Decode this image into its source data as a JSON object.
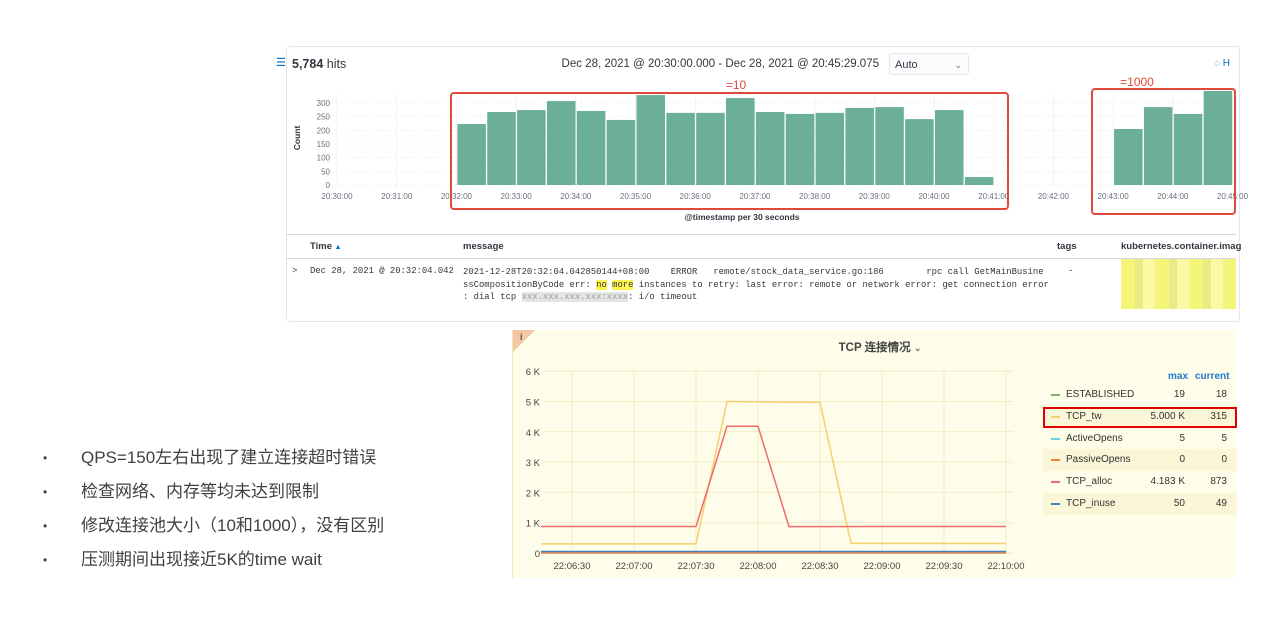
{
  "kibana": {
    "hits_count": "5,784",
    "hits_label": "hits",
    "time_range": "Dec 28, 2021 @ 20:30:00.000 - Dec 28, 2021 @ 20:45:29.075",
    "interval_select": "Auto",
    "hide_chart_label": "H",
    "annotations": {
      "box1": "=10",
      "box2": "=1000"
    },
    "table": {
      "columns": [
        "Time",
        "message",
        "tags",
        "kubernetes.container.imag"
      ],
      "rows": [
        {
          "time": "Dec 28, 2021 @ 20:32:04.042",
          "message_line1": "2021-12-28T20:32:04.042850144+08:00    ERROR   remote/stock_data_service.go:186        rpc call GetMainBusine",
          "message_line2_pre": "ssCompositionByCode err: ",
          "highlight1": "no",
          "highlight2": "more",
          "message_line2_post": " instances to retry: last error: remote or network error: get connection error",
          "message_line3_pre": ": dial tcp ",
          "message_line3_redacted": "xxx.xxx.xxx.xxx:xxxx",
          "message_line3_post": ": i/o timeout",
          "tags": "-"
        }
      ]
    }
  },
  "chart_data": [
    {
      "type": "bar",
      "xlabel": "@timestamp per 30 seconds",
      "ylabel": "Count",
      "ylim": [
        0,
        340
      ],
      "yticks": [
        0,
        50,
        100,
        150,
        200,
        250,
        300
      ],
      "xticks": [
        "20:30:00",
        "20:31:00",
        "20:32:00",
        "20:33:00",
        "20:34:00",
        "20:35:00",
        "20:36:00",
        "20:37:00",
        "20:38:00",
        "20:39:00",
        "20:40:00",
        "20:41:00",
        "20:42:00",
        "20:43:00",
        "20:44:00",
        "20:45:00"
      ],
      "x": [
        "20:32:00",
        "20:32:30",
        "20:33:00",
        "20:33:30",
        "20:34:00",
        "20:34:30",
        "20:35:00",
        "20:35:30",
        "20:36:00",
        "20:36:30",
        "20:37:00",
        "20:37:30",
        "20:38:00",
        "20:38:30",
        "20:39:00",
        "20:39:30",
        "20:40:00",
        "20:40:30",
        "20:43:00",
        "20:43:30",
        "20:44:00",
        "20:44:30"
      ],
      "values": [
        223,
        267,
        274,
        307,
        271,
        238,
        329,
        264,
        264,
        318,
        267,
        260,
        264,
        282,
        285,
        241,
        274,
        29,
        205,
        285,
        260,
        344
      ],
      "color": "#6aaf96",
      "grid": true
    },
    {
      "type": "line",
      "title": "TCP 连接情况",
      "yticks": [
        "0",
        "1 K",
        "2 K",
        "3 K",
        "4 K",
        "5 K",
        "6 K"
      ],
      "ylim": [
        0,
        6000
      ],
      "xticks": [
        "22:06:30",
        "22:07:00",
        "22:07:30",
        "22:08:00",
        "22:08:30",
        "22:09:00",
        "22:09:30",
        "22:10:00"
      ],
      "grid": true,
      "legend_headers": [
        "max",
        "current"
      ],
      "series": [
        {
          "name": "ESTABLISHED",
          "color": "#7eb26d",
          "max": "19",
          "current": "18",
          "x": [
            "22:06:15",
            "22:10:00"
          ],
          "values": [
            19,
            18
          ]
        },
        {
          "name": "TCP_tw",
          "color": "#f4d06f",
          "max": "5.000 K",
          "current": "315",
          "x": [
            "22:06:15",
            "22:07:30",
            "22:07:45",
            "22:08:30",
            "22:08:45",
            "22:10:00"
          ],
          "values": [
            300,
            300,
            5000,
            4970,
            320,
            315
          ],
          "highlighted": true
        },
        {
          "name": "ActiveOpens",
          "color": "#6ed0e0",
          "max": "5",
          "current": "5",
          "x": [
            "22:06:15",
            "22:10:00"
          ],
          "values": [
            5,
            5
          ]
        },
        {
          "name": "PassiveOpens",
          "color": "#ef843c",
          "max": "0",
          "current": "0",
          "x": [
            "22:06:15",
            "22:10:00"
          ],
          "values": [
            0,
            0
          ]
        },
        {
          "name": "TCP_alloc",
          "color": "#f06b6b",
          "max": "4.183 K",
          "current": "873",
          "x": [
            "22:06:15",
            "22:07:30",
            "22:07:45",
            "22:08:00",
            "22:08:15",
            "22:10:00"
          ],
          "values": [
            873,
            873,
            4183,
            4183,
            870,
            873
          ]
        },
        {
          "name": "TCP_inuse",
          "color": "#447ebc",
          "max": "50",
          "current": "49",
          "x": [
            "22:06:15",
            "22:10:00"
          ],
          "values": [
            50,
            49
          ]
        }
      ]
    }
  ],
  "bullets": [
    "QPS=150左右出现了建立连接超时错误",
    "检查网络、内存等均未达到限制",
    "修改连接池大小（10和1000），没有区别",
    "压测期间出现接近5K的time wait"
  ],
  "colors": {
    "annotation_red": "#e04a3a",
    "highlight_red": "#e00000",
    "link_blue": "#1f78d1"
  }
}
